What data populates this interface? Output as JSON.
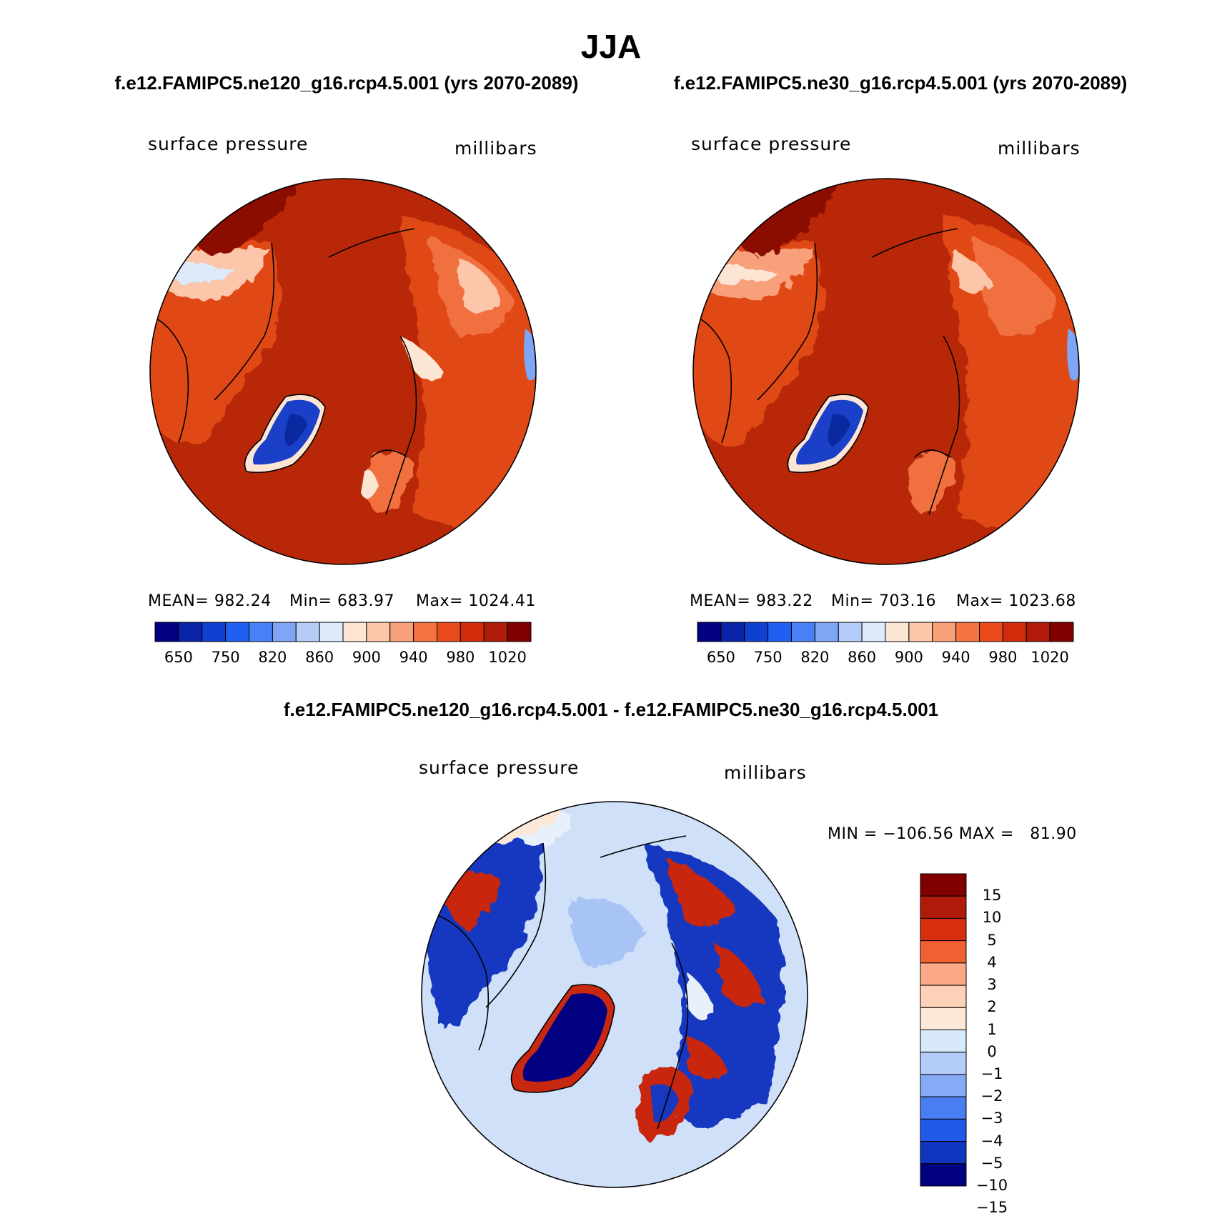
{
  "title": "JJA",
  "subtitles": {
    "left": "f.e12.FAMIPC5.ne120_g16.rcp4.5.001 (yrs 2070-2089)",
    "right": "f.e12.FAMIPC5.ne30_g16.rcp4.5.001 (yrs 2070-2089)",
    "diff": "f.e12.FAMIPC5.ne120_g16.rcp4.5.001 - f.e12.FAMIPC5.ne30_g16.rcp4.5.001"
  },
  "panels": {
    "left": {
      "variable": "surface pressure",
      "units": "millibars",
      "stats": {
        "mean": "MEAN= 982.24",
        "min": "Min= 683.97",
        "max": "Max= 1024.41"
      }
    },
    "right": {
      "variable": "surface pressure",
      "units": "millibars",
      "stats": {
        "mean": "MEAN= 983.22",
        "min": "Min= 703.16",
        "max": "Max= 1023.68"
      }
    },
    "diff": {
      "variable": "surface pressure",
      "units": "millibars",
      "minmax": "MIN = −106.56 MAX =   81.90"
    }
  },
  "colorbar_top": {
    "colors": [
      "#000080",
      "#0a24a8",
      "#1040d0",
      "#2060f0",
      "#4a80f5",
      "#7ea6f5",
      "#b4ccf8",
      "#dceafa",
      "#fde5d4",
      "#fbc6aa",
      "#f8a07a",
      "#f37440",
      "#e84a1c",
      "#d02c0c",
      "#b01a08",
      "#800000"
    ],
    "ticks": [
      "650",
      "750",
      "820",
      "860",
      "900",
      "940",
      "980",
      "1020"
    ]
  },
  "colorbar_diff": {
    "colors": [
      "#800000",
      "#b01a08",
      "#d8300e",
      "#f06030",
      "#fba888",
      "#fdd0b8",
      "#fde8d8",
      "#d8eafa",
      "#b4ccf8",
      "#86aaf5",
      "#4a7ef0",
      "#2058e8",
      "#1036c0",
      "#000080"
    ],
    "ticks": [
      "15",
      "10",
      "5",
      "4",
      "3",
      "2",
      "1",
      "0",
      "−1",
      "−2",
      "−3",
      "−4",
      "−5",
      "−10",
      "−15"
    ]
  },
  "map_colors": {
    "ocean_top": "#b82808",
    "land_mid": "#e04818",
    "land_light": "#f07040",
    "high_pos": "#8a0a00",
    "greenland": "#1a40c8",
    "greenland_core": "#0a28a0",
    "diff_base": "#cfe0f8",
    "diff_light": "#e8f0fc",
    "diff_pos": "#c82810",
    "diff_neg": "#1838c0"
  }
}
